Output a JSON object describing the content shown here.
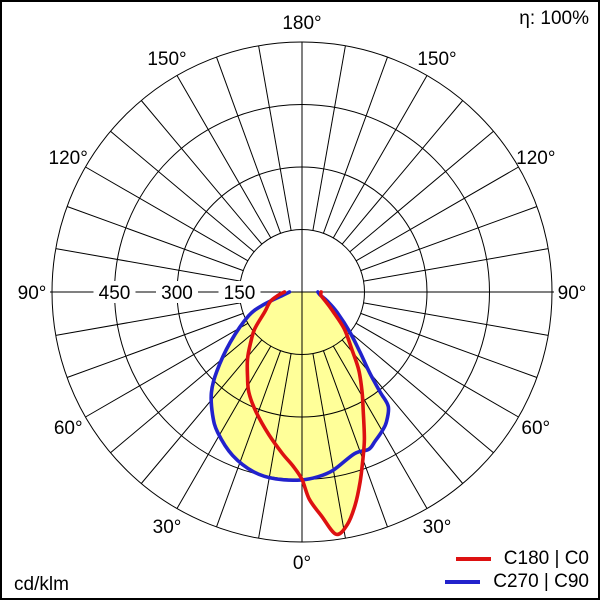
{
  "header": {
    "efficiency_label": "η: 100%"
  },
  "footer": {
    "unit_label": "cd/klm"
  },
  "legend": {
    "items": [
      {
        "label": "C180 | C0",
        "color": "#dd1111"
      },
      {
        "label": "C270 | C90",
        "color": "#2222cc"
      }
    ]
  },
  "chart_data": {
    "type": "polar-photometric",
    "unit": "cd/klm",
    "efficiency_percent": 100,
    "rmax": 600,
    "ring_values": [
      150,
      300,
      450,
      600
    ],
    "ring_labels_shown": [
      "450",
      "300",
      "150"
    ],
    "angle_labels": [
      "0°",
      "30°",
      "60°",
      "90°",
      "120°",
      "150°",
      "180°"
    ],
    "grid_color": "#000000",
    "fill_color": "#ffff99",
    "legend_position": "bottom-right",
    "series": [
      {
        "name": "C180 | C0",
        "color": "#dd1111",
        "points": [
          [
            -90,
            42
          ],
          [
            -82,
            58
          ],
          [
            -73,
            80
          ],
          [
            -62,
            101
          ],
          [
            -52,
            144
          ],
          [
            -45,
            175
          ],
          [
            -39,
            208
          ],
          [
            -33,
            240
          ],
          [
            -28,
            272
          ],
          [
            -21,
            308
          ],
          [
            -13,
            352
          ],
          [
            -7,
            390
          ],
          [
            -3,
            418
          ],
          [
            0,
            450
          ],
          [
            2,
            497
          ],
          [
            5,
            540
          ],
          [
            8,
            587
          ],
          [
            11,
            569
          ],
          [
            14,
            527
          ],
          [
            17,
            477
          ],
          [
            20,
            427
          ],
          [
            23,
            383
          ],
          [
            27,
            324
          ],
          [
            31,
            280
          ],
          [
            36,
            232
          ],
          [
            41,
            182
          ],
          [
            49,
            134
          ],
          [
            59,
            84
          ],
          [
            70,
            58
          ],
          [
            80,
            46
          ],
          [
            90,
            46
          ]
        ]
      },
      {
        "name": "C270 | C90",
        "color": "#2222cc",
        "points": [
          [
            -90,
            30
          ],
          [
            -80,
            48
          ],
          [
            -72,
            95
          ],
          [
            -66,
            140
          ],
          [
            -55,
            210
          ],
          [
            -47,
            280
          ],
          [
            -42,
            325
          ],
          [
            -36,
            365
          ],
          [
            -31,
            393
          ],
          [
            -23,
            426
          ],
          [
            -15,
            447
          ],
          [
            -8,
            453
          ],
          [
            0,
            451
          ],
          [
            5,
            445
          ],
          [
            10,
            434
          ],
          [
            18,
            408
          ],
          [
            23,
            410
          ],
          [
            26,
            399
          ],
          [
            30,
            385
          ],
          [
            33,
            372
          ],
          [
            37,
            344
          ],
          [
            38,
            304
          ],
          [
            40,
            252
          ],
          [
            44,
            200
          ],
          [
            50,
            150
          ],
          [
            60,
            97
          ],
          [
            70,
            65
          ],
          [
            80,
            45
          ],
          [
            90,
            38
          ]
        ]
      }
    ]
  }
}
